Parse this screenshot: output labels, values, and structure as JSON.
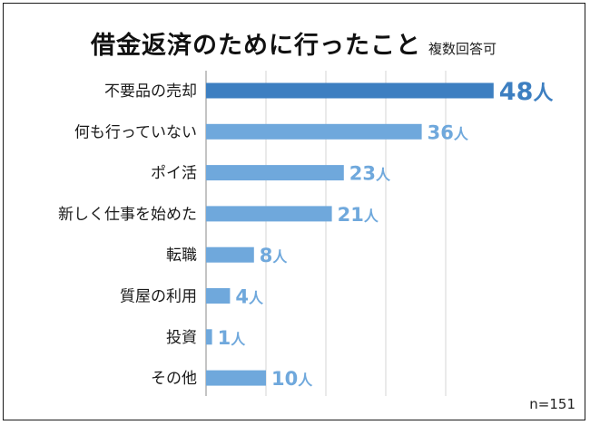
{
  "chart_data": {
    "type": "bar",
    "orientation": "horizontal",
    "title": "借金返済のために行ったこと",
    "subtitle": "複数回答可",
    "categories": [
      "不要品の売却",
      "何も行っていない",
      "ポイ活",
      "新しく仕事を始めた",
      "転職",
      "質屋の利用",
      "投資",
      "その他"
    ],
    "values": [
      48,
      36,
      23,
      21,
      8,
      4,
      1,
      10
    ],
    "unit": "人",
    "xlim": [
      0,
      50
    ],
    "grid": true,
    "note": "n=151"
  },
  "colors": {
    "bar": "#6fa8dc",
    "bar_highlight": "#3d7fc1",
    "label": "#6fa8dc",
    "label_highlight": "#3d7fc1"
  }
}
